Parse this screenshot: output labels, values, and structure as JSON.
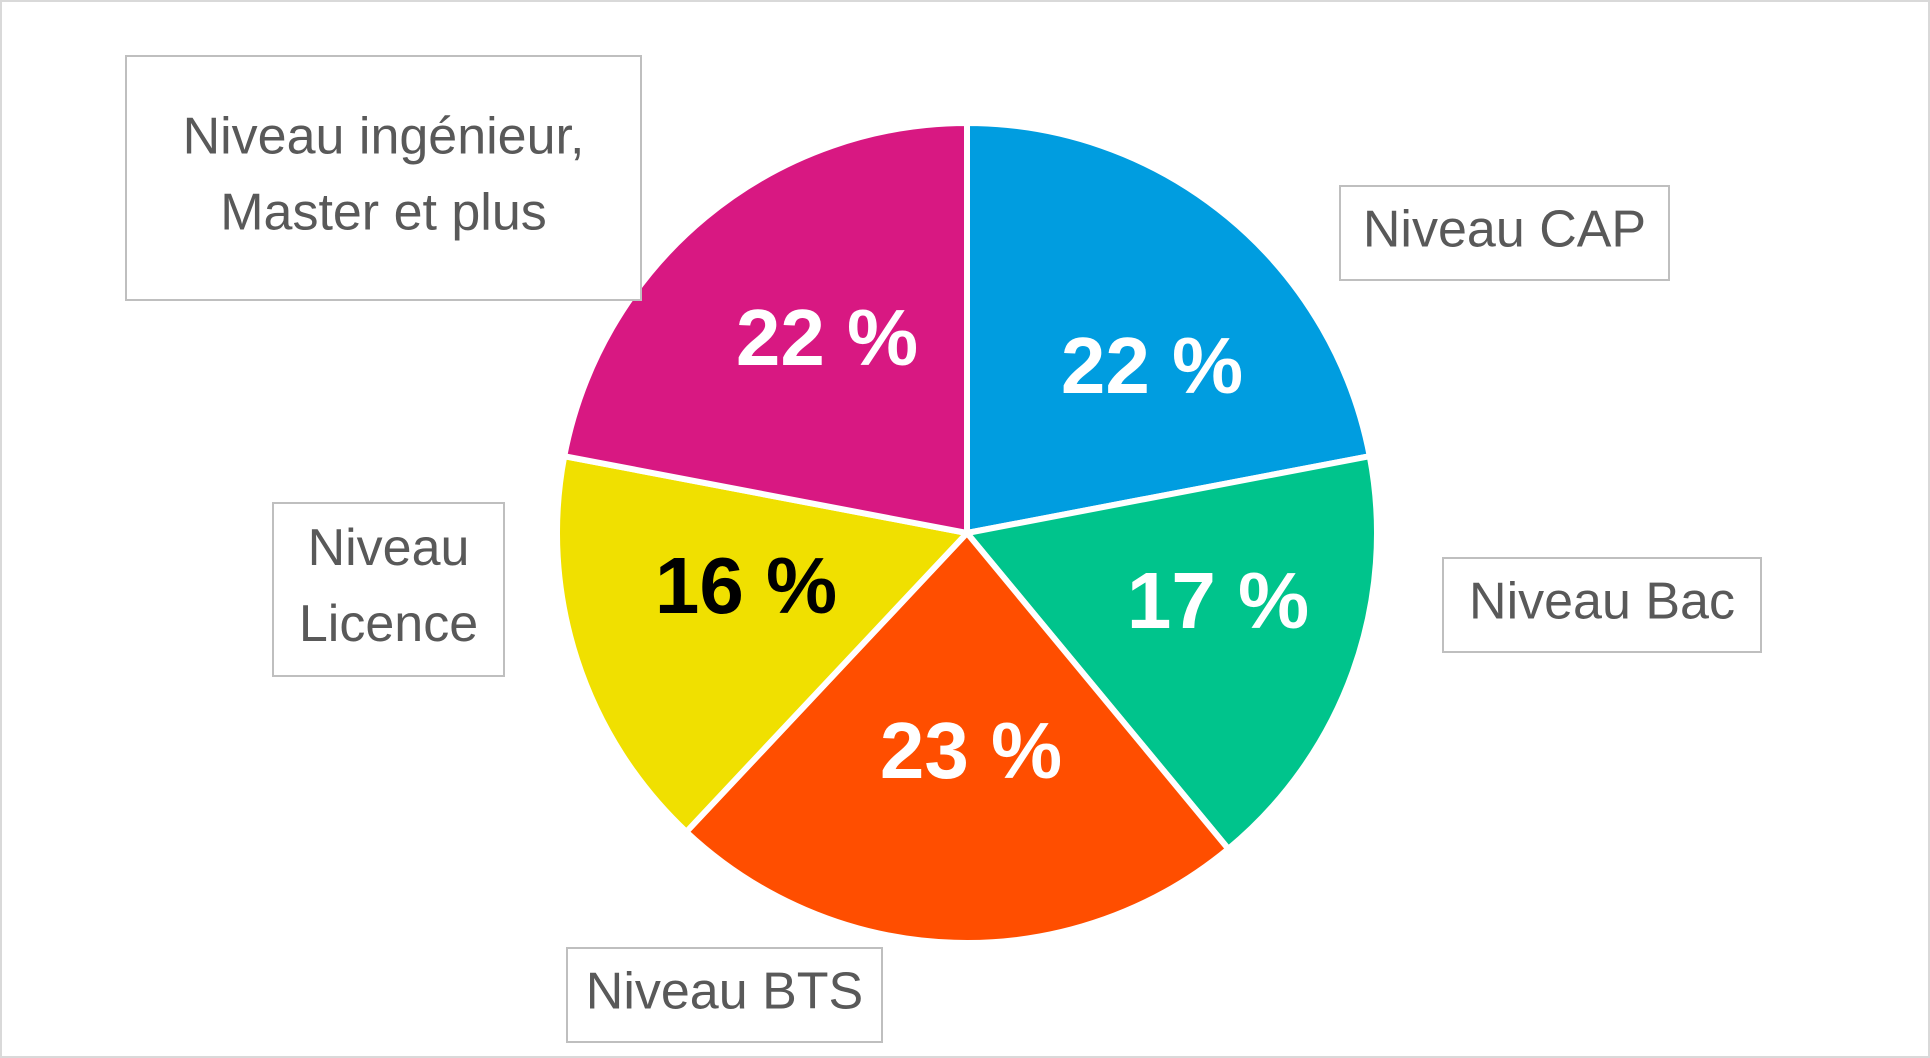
{
  "chart_data": {
    "type": "pie",
    "categories": [
      "Niveau CAP",
      "Niveau Bac",
      "Niveau BTS",
      "Niveau Licence",
      "Niveau ingénieur, Master et plus"
    ],
    "values": [
      22,
      17,
      23,
      16,
      22
    ],
    "data_labels": [
      "22 %",
      "17 %",
      "23 %",
      "16 %",
      "22 %"
    ],
    "label_lines": [
      [
        "Niveau CAP"
      ],
      [
        "Niveau Bac"
      ],
      [
        "Niveau BTS"
      ],
      [
        "Niveau",
        "Licence"
      ],
      [
        "Niveau ingénieur,",
        "Master et plus"
      ]
    ],
    "colors": [
      "#009de0",
      "#00c48c",
      "#ff4e00",
      "#f0e000",
      "#d81882"
    ],
    "value_label_colors": [
      "#ffffff",
      "#ffffff",
      "#ffffff",
      "#000000",
      "#ffffff"
    ],
    "title": "",
    "legend": "none",
    "start": "top, clockwise"
  }
}
